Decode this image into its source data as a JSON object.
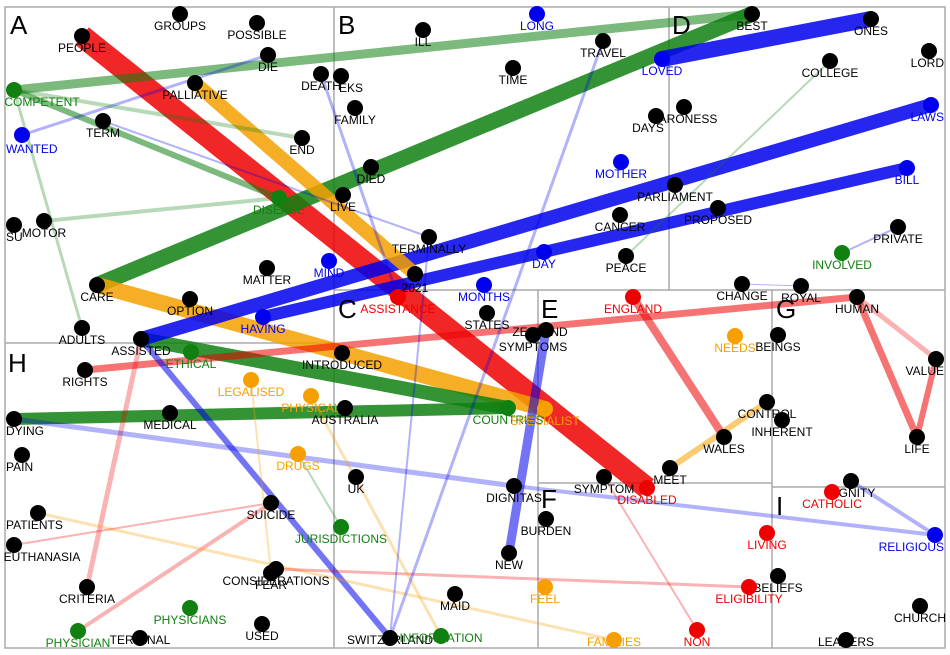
{
  "regions": [
    {
      "letter": "A"
    },
    {
      "letter": "B"
    },
    {
      "letter": "C"
    },
    {
      "letter": "D"
    },
    {
      "letter": "E"
    },
    {
      "letter": "F"
    },
    {
      "letter": "G"
    },
    {
      "letter": "H"
    },
    {
      "letter": "I"
    }
  ],
  "colors": {
    "black": "#000000",
    "green": "#108010",
    "blue": "#0000ee",
    "orange": "#f5a000",
    "red": "#ee0000",
    "border": "#aaaaaa"
  },
  "nodes": [
    {
      "id": "PEOPLE",
      "color": "black"
    },
    {
      "id": "GROUPS",
      "color": "black"
    },
    {
      "id": "POSSIBLE",
      "color": "black"
    },
    {
      "id": "DIE",
      "color": "black"
    },
    {
      "id": "COMPETENT",
      "color": "green"
    },
    {
      "id": "WANTED",
      "color": "blue"
    },
    {
      "id": "TERM",
      "color": "black"
    },
    {
      "id": "PALLIATIVE",
      "color": "black"
    },
    {
      "id": "END",
      "color": "black"
    },
    {
      "id": "DEATH",
      "color": "black"
    },
    {
      "id": "EKS",
      "color": "black"
    },
    {
      "id": "FAMILY",
      "color": "black"
    },
    {
      "id": "DIED",
      "color": "black"
    },
    {
      "id": "LIVE",
      "color": "black"
    },
    {
      "id": "DISEASE",
      "color": "green"
    },
    {
      "id": "SU",
      "color": "black"
    },
    {
      "id": "MOTOR",
      "color": "black"
    },
    {
      "id": "ILL",
      "color": "black"
    },
    {
      "id": "LONG",
      "color": "blue"
    },
    {
      "id": "TIME",
      "color": "black"
    },
    {
      "id": "TRAVEL",
      "color": "black"
    },
    {
      "id": "BEST",
      "color": "black"
    },
    {
      "id": "ONES",
      "color": "black"
    },
    {
      "id": "LOVED",
      "color": "blue"
    },
    {
      "id": "COLLEGE",
      "color": "black"
    },
    {
      "id": "LORD",
      "color": "black"
    },
    {
      "id": "BARONESS",
      "color": "black"
    },
    {
      "id": "DAYS",
      "color": "black"
    },
    {
      "id": "LAWS",
      "color": "blue"
    },
    {
      "id": "MOTHER",
      "color": "blue"
    },
    {
      "id": "BILL",
      "color": "blue"
    },
    {
      "id": "PARLIAMENT",
      "color": "black"
    },
    {
      "id": "PROPOSED",
      "color": "black"
    },
    {
      "id": "CANCER",
      "color": "black"
    },
    {
      "id": "PRIVATE",
      "color": "black"
    },
    {
      "id": "TERMINALLY",
      "color": "black"
    },
    {
      "id": "DAY",
      "color": "blue"
    },
    {
      "id": "PEACE",
      "color": "black"
    },
    {
      "id": "INVOLVED",
      "color": "green"
    },
    {
      "id": "MIND",
      "color": "blue"
    },
    {
      "id": "MATTER",
      "color": "black"
    },
    {
      "id": "2021",
      "color": "black"
    },
    {
      "id": "MONTHS",
      "color": "blue"
    },
    {
      "id": "CARE",
      "color": "black"
    },
    {
      "id": "OPTION",
      "color": "black"
    },
    {
      "id": "HAVING",
      "color": "blue"
    },
    {
      "id": "ADULTS",
      "color": "black"
    },
    {
      "id": "ASSISTANCE",
      "color": "red"
    },
    {
      "id": "STATES",
      "color": "black"
    },
    {
      "id": "ZEALAND",
      "color": "black"
    },
    {
      "id": "SYMPTOMS",
      "color": "black"
    },
    {
      "id": "ENGLAND",
      "color": "red"
    },
    {
      "id": "CHANGE",
      "color": "black"
    },
    {
      "id": "ROYAL",
      "color": "black"
    },
    {
      "id": "HUMAN",
      "color": "black"
    },
    {
      "id": "NEEDS",
      "color": "orange"
    },
    {
      "id": "BEINGS",
      "color": "black"
    },
    {
      "id": "VALUE",
      "color": "black"
    },
    {
      "id": "ASSISTED",
      "color": "black"
    },
    {
      "id": "RIGHTS",
      "color": "black"
    },
    {
      "id": "ETHICAL",
      "color": "green"
    },
    {
      "id": "INTRODUCED",
      "color": "black"
    },
    {
      "id": "LEGALISED",
      "color": "orange"
    },
    {
      "id": "PHYSICAL",
      "color": "orange"
    },
    {
      "id": "AUSTRALIA",
      "color": "black"
    },
    {
      "id": "COUNTRIES",
      "color": "green"
    },
    {
      "id": "SPECIALIST",
      "color": "orange"
    },
    {
      "id": "CONTROL",
      "color": "black"
    },
    {
      "id": "INHERENT",
      "color": "black"
    },
    {
      "id": "WALES",
      "color": "black"
    },
    {
      "id": "LIFE",
      "color": "black"
    },
    {
      "id": "DYING",
      "color": "black"
    },
    {
      "id": "MEDICAL",
      "color": "black"
    },
    {
      "id": "PAIN",
      "color": "black"
    },
    {
      "id": "DRUGS",
      "color": "orange"
    },
    {
      "id": "UK",
      "color": "black"
    },
    {
      "id": "DIGNITAS",
      "color": "black"
    },
    {
      "id": "SYMPTOM",
      "color": "black"
    },
    {
      "id": "MEET",
      "color": "black"
    },
    {
      "id": "DISABLED",
      "color": "red"
    },
    {
      "id": "DIGNITY",
      "color": "black"
    },
    {
      "id": "CATHOLIC",
      "color": "red"
    },
    {
      "id": "RELIGIOUS",
      "color": "blue"
    },
    {
      "id": "PATIENTS",
      "color": "black"
    },
    {
      "id": "SUICIDE",
      "color": "black"
    },
    {
      "id": "JURISDICTIONS",
      "color": "green"
    },
    {
      "id": "BURDEN",
      "color": "black"
    },
    {
      "id": "LIVING",
      "color": "red"
    },
    {
      "id": "EUTHANASIA",
      "color": "black"
    },
    {
      "id": "NEW",
      "color": "black"
    },
    {
      "id": "BELIEFS",
      "color": "black"
    },
    {
      "id": "FEAR",
      "color": "black"
    },
    {
      "id": "CONSIDERATIONS",
      "color": "black"
    },
    {
      "id": "CRITERIA",
      "color": "black"
    },
    {
      "id": "FEEL",
      "color": "orange"
    },
    {
      "id": "ELIGIBILITY",
      "color": "red"
    },
    {
      "id": "MAID",
      "color": "black"
    },
    {
      "id": "PHYSICIANS",
      "color": "green"
    },
    {
      "id": "CHURCH",
      "color": "black"
    },
    {
      "id": "PHYSICIAN",
      "color": "green"
    },
    {
      "id": "TERMINAL",
      "color": "black"
    },
    {
      "id": "USED",
      "color": "black"
    },
    {
      "id": "SWITZERLAND",
      "color": "black"
    },
    {
      "id": "INFORMATION",
      "color": "green"
    },
    {
      "id": "FAMILIES",
      "color": "orange"
    },
    {
      "id": "NON",
      "color": "red"
    },
    {
      "id": "LEADERS",
      "color": "black"
    }
  ],
  "edges": [
    {
      "from": "PEOPLE",
      "to": "DISABLED",
      "color": "red",
      "weight": 22
    },
    {
      "from": "CARE",
      "to": "BEST",
      "color": "green",
      "weight": 16
    },
    {
      "from": "LOVED",
      "to": "ONES",
      "color": "blue",
      "weight": 16
    },
    {
      "from": "CARE",
      "to": "SPECIALIST",
      "color": "orange",
      "weight": 16
    },
    {
      "from": "ASSISTED",
      "to": "COUNTRIES",
      "color": "green",
      "weight": 14
    },
    {
      "from": "ASSISTED",
      "to": "LAWS",
      "color": "blue",
      "weight": 14
    },
    {
      "from": "PALLIATIVE",
      "to": "2021",
      "color": "orange",
      "weight": 14
    },
    {
      "from": "DYING",
      "to": "COUNTRIES",
      "color": "green",
      "weight": 12
    },
    {
      "from": "HAVING",
      "to": "BILL",
      "color": "blue",
      "weight": 12
    },
    {
      "from": "COMPETENT",
      "to": "BEST",
      "color": "green",
      "weight": 9
    },
    {
      "from": "ZEALAND",
      "to": "NEW",
      "color": "blue",
      "weight": 9
    },
    {
      "from": "ENGLAND",
      "to": "WALES",
      "color": "red",
      "weight": 8
    },
    {
      "from": "RIGHTS",
      "to": "HUMAN",
      "color": "red",
      "weight": 7
    },
    {
      "from": "HUMAN",
      "to": "LIFE",
      "color": "red",
      "weight": 7
    },
    {
      "from": "VALUE",
      "to": "LIFE",
      "color": "red",
      "weight": 6
    },
    {
      "from": "HUMAN",
      "to": "VALUE",
      "color": "red",
      "weight": 5
    },
    {
      "from": "CRITERIA",
      "to": "ASSISTED",
      "color": "red",
      "weight": 5
    },
    {
      "from": "COMPETENT",
      "to": "DISEASE",
      "color": "green",
      "weight": 6
    },
    {
      "from": "DISEASE",
      "to": "MOTOR",
      "color": "green",
      "weight": 4
    },
    {
      "from": "ASSISTED",
      "to": "SWITZERLAND",
      "color": "blue",
      "weight": 6
    },
    {
      "from": "DYING",
      "to": "DIGNITAS",
      "color": "blue",
      "weight": 5
    },
    {
      "from": "MEET",
      "to": "CONTROL",
      "color": "orange",
      "weight": 6
    },
    {
      "from": "DIGNITY",
      "to": "RELIGIOUS",
      "color": "blue",
      "weight": 4
    },
    {
      "from": "DIGNITAS",
      "to": "RELIGIOUS",
      "color": "blue",
      "weight": 4
    },
    {
      "from": "PHYSICIAN",
      "to": "SUICIDE",
      "color": "red",
      "weight": 4
    },
    {
      "from": "PATIENTS",
      "to": "FAMILIES",
      "color": "orange",
      "weight": 3
    },
    {
      "from": "CONSIDERATIONS",
      "to": "ELIGIBILITY",
      "color": "red",
      "weight": 3
    },
    {
      "from": "PHYSICAL",
      "to": "INFORMATION",
      "color": "orange",
      "weight": 3
    },
    {
      "from": "INVOLVED",
      "to": "PRIVATE",
      "color": "blue",
      "weight": 2
    },
    {
      "from": "WANTED",
      "to": "DIE",
      "color": "blue",
      "weight": 3
    },
    {
      "from": "ADULTS",
      "to": "COMPETENT",
      "color": "green",
      "weight": 3
    },
    {
      "from": "TERMINALLY",
      "to": "SWITZERLAND",
      "color": "blue",
      "weight": 2
    },
    {
      "from": "TRAVEL",
      "to": "SWITZERLAND",
      "color": "blue",
      "weight": 3
    },
    {
      "from": "DEATH",
      "to": "ASSISTANCE",
      "color": "blue",
      "weight": 3
    },
    {
      "from": "DRUGS",
      "to": "JURISDICTIONS",
      "color": "green",
      "weight": 2
    },
    {
      "from": "NON",
      "to": "SYMPTOM",
      "color": "red",
      "weight": 2
    },
    {
      "from": "LEGALISED",
      "to": "FEAR",
      "color": "orange",
      "weight": 2
    },
    {
      "from": "EUTHANASIA",
      "to": "SUICIDE",
      "color": "red",
      "weight": 2
    },
    {
      "from": "COMPETENT",
      "to": "END",
      "color": "green",
      "weight": 4
    },
    {
      "from": "CHANGE",
      "to": "ROYAL",
      "color": "blue",
      "weight": 1
    },
    {
      "from": "COLLEGE",
      "to": "PEACE",
      "color": "green",
      "weight": 2
    },
    {
      "from": "TERM",
      "to": "TERMINALLY",
      "color": "blue",
      "weight": 2
    }
  ]
}
